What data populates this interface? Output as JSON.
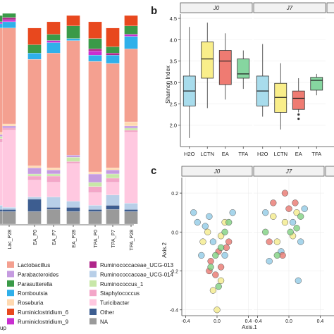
{
  "panel_labels": {
    "b": "b",
    "c": "c"
  },
  "panel_a": {
    "x_labels": [
      "Lac_P28",
      "EA_P0",
      "EA_P7",
      "EA_P28",
      "TPA_P0",
      "TPA_P7",
      "TPA_P28"
    ],
    "legend_cut_label": "up",
    "legend": [
      {
        "label": "Lactobacillus",
        "color": "#f4a090"
      },
      {
        "label": "Parabacteroides",
        "color": "#c59be0"
      },
      {
        "label": "Parasutterella",
        "color": "#3a9a48"
      },
      {
        "label": "Romboutsia",
        "color": "#2fb0ea"
      },
      {
        "label": "Roseburia",
        "color": "#ffd9b0"
      },
      {
        "label": "Ruminiclostridium_6",
        "color": "#e8481e"
      },
      {
        "label": "Ruminiclostridium_9",
        "color": "#c92fd0"
      },
      {
        "label": "Ruminococcaceae_UCG-013",
        "color": "#b0268a"
      },
      {
        "label": "Ruminococcaceae_UCG-014",
        "color": "#b8cfe8"
      },
      {
        "label": "Ruminococcus_1",
        "color": "#c8e7a8"
      },
      {
        "label": "Staphylococcus",
        "color": "#f3a6c8"
      },
      {
        "label": "Turicibacter",
        "color": "#ffc8e0"
      },
      {
        "label": "Other",
        "color": "#3d5d90"
      },
      {
        "label": "NA",
        "color": "#9a9a9a"
      }
    ]
  },
  "chart_data": [
    {
      "type": "bar",
      "stacked": true,
      "categories": [
        "Lac_P28",
        "EA_P0",
        "EA_P7",
        "EA_P28",
        "TPA_P0",
        "TPA_P7",
        "TPA_P28"
      ],
      "ylim": [
        0,
        1
      ],
      "series": [
        {
          "name": "NA",
          "values": [
            0.06,
            0.06,
            0.07,
            0.06,
            0.06,
            0.07,
            0.06
          ]
        },
        {
          "name": "Other",
          "values": [
            0.01,
            0.06,
            0.01,
            0.02,
            0.01,
            0.02,
            0.01
          ]
        },
        {
          "name": "Ruminococcaceae_UCG-014",
          "values": [
            0.01,
            0.01,
            0.05,
            0.03,
            0.02,
            0.05,
            0.03
          ]
        },
        {
          "name": "Turicibacter",
          "values": [
            0.37,
            0.08,
            0.07,
            0.18,
            0.06,
            0.06,
            0.34
          ]
        },
        {
          "name": "Staphylococcus",
          "values": [
            0.01,
            0.02,
            0.03,
            0.01,
            0.03,
            0.02,
            0.01
          ]
        },
        {
          "name": "Ruminococcus_1",
          "values": [
            0.0,
            0.01,
            0.01,
            0.02,
            0.02,
            0.02,
            0.01
          ]
        },
        {
          "name": "Parabacteroides",
          "values": [
            0.01,
            0.03,
            0.02,
            0.01,
            0.04,
            0.02,
            0.01
          ]
        },
        {
          "name": "Roseburia",
          "values": [
            0.01,
            0.01,
            0.01,
            0.0,
            0.01,
            0.01,
            0.02
          ]
        },
        {
          "name": "Lactobacillus",
          "values": [
            0.46,
            0.51,
            0.55,
            0.55,
            0.53,
            0.5,
            0.35
          ]
        },
        {
          "name": "Romboutsia",
          "values": [
            0.03,
            0.03,
            0.05,
            0.01,
            0.03,
            0.04,
            0.06
          ]
        },
        {
          "name": "Ruminiclostridium_9",
          "values": [
            0.01,
            0.0,
            0.01,
            0.0,
            0.02,
            0.0,
            0.01
          ]
        },
        {
          "name": "Ruminococcaceae_UCG-013",
          "values": [
            0.01,
            0.0,
            0.0,
            0.0,
            0.01,
            0.01,
            0.0
          ]
        },
        {
          "name": "Parasutterella",
          "values": [
            0.02,
            0.04,
            0.03,
            0.06,
            0.05,
            0.03,
            0.04
          ]
        },
        {
          "name": "Ruminiclostridium_6",
          "values": [
            0.0,
            0.08,
            0.06,
            0.05,
            0.08,
            0.09,
            0.05
          ]
        }
      ]
    },
    {
      "type": "box",
      "ylabel": "Shannon Index",
      "ylim": [
        1.5,
        4.6
      ],
      "yticks": [
        2.0,
        2.5,
        3.0,
        3.5,
        4.0,
        4.5
      ],
      "facets": [
        "J0",
        "J7"
      ],
      "groups": [
        {
          "facet": "J0",
          "label": "H2O",
          "color": "#a8dcec",
          "min": 1.7,
          "q1": 2.45,
          "median": 2.8,
          "q3": 3.15,
          "max": 4.3
        },
        {
          "facet": "J0",
          "label": "LCTN",
          "color": "#f9ee8a",
          "min": 2.4,
          "q1": 3.1,
          "median": 3.55,
          "q3": 3.95,
          "max": 4.4
        },
        {
          "facet": "J0",
          "label": "EA",
          "color": "#ef7b72",
          "min": 2.6,
          "q1": 2.95,
          "median": 3.5,
          "q3": 3.75,
          "max": 4.15
        },
        {
          "facet": "J0",
          "label": "TFA",
          "color": "#86d6a0",
          "min": 2.85,
          "q1": 3.1,
          "median": 3.2,
          "q3": 3.55,
          "max": 3.75
        },
        {
          "facet": "J7",
          "label": "H2O",
          "color": "#a8dcec",
          "min": 2.2,
          "q1": 2.45,
          "median": 2.8,
          "q3": 3.15,
          "max": 3.9
        },
        {
          "facet": "J7",
          "label": "LCTN",
          "color": "#f9ee8a",
          "min": 1.9,
          "q1": 2.3,
          "median": 2.65,
          "q3": 2.98,
          "max": 3.45
        },
        {
          "facet": "J7",
          "label": "EA",
          "color": "#ef7b72",
          "min": 2.3,
          "q1": 2.37,
          "median": 2.63,
          "q3": 2.8,
          "max": 3.1,
          "outliers": [
            2.15,
            2.25
          ]
        },
        {
          "facet": "J7",
          "label": "TFA",
          "color": "#86d6a0",
          "min": 2.7,
          "q1": 2.82,
          "median": 3.05,
          "q3": 3.12,
          "max": 3.2
        }
      ]
    },
    {
      "type": "scatter",
      "xlabel": "Axis.1",
      "ylabel": "Axis.2",
      "facets": [
        "J0",
        "J7"
      ],
      "xlim": [
        -0.45,
        0.45
      ],
      "ylim": [
        -0.43,
        0.28
      ],
      "xticks": [
        -0.4,
        0.0,
        0.4
      ],
      "xtick_labels": [
        "-0.4",
        "0.0",
        "0.4"
      ],
      "yticks": [
        -0.4,
        -0.2,
        0.0,
        0.2
      ],
      "ytick_labels": [
        "-0.4",
        "-0.2",
        "0.0",
        "0.2"
      ],
      "points": [
        {
          "facet": "J0",
          "x": -0.3,
          "y": 0.1,
          "color": "#8ec9e6"
        },
        {
          "facet": "J0",
          "x": -0.25,
          "y": 0.05,
          "color": "#8ec9e6"
        },
        {
          "facet": "J0",
          "x": -0.15,
          "y": 0.03,
          "color": "#8ec9e6"
        },
        {
          "facet": "J0",
          "x": -0.1,
          "y": 0.08,
          "color": "#8ec9e6"
        },
        {
          "facet": "J0",
          "x": -0.05,
          "y": -0.05,
          "color": "#8ec9e6"
        },
        {
          "facet": "J0",
          "x": 0.2,
          "y": 0.1,
          "color": "#8ec9e6"
        },
        {
          "facet": "J0",
          "x": 0.1,
          "y": -0.12,
          "color": "#8ec9e6"
        },
        {
          "facet": "J0",
          "x": -0.2,
          "y": -0.12,
          "color": "#8ec9e6"
        },
        {
          "facet": "J0",
          "x": -0.12,
          "y": 0.0,
          "color": "#f4ea88"
        },
        {
          "facet": "J0",
          "x": 0.05,
          "y": -0.02,
          "color": "#f4ea88"
        },
        {
          "facet": "J0",
          "x": -0.05,
          "y": -0.3,
          "color": "#f4ea88"
        },
        {
          "facet": "J0",
          "x": 0.0,
          "y": -0.4,
          "color": "#f4ea88"
        },
        {
          "facet": "J0",
          "x": 0.05,
          "y": -0.25,
          "color": "#f4ea88"
        },
        {
          "facet": "J0",
          "x": 0.1,
          "y": 0.05,
          "color": "#f4ea88"
        },
        {
          "facet": "J0",
          "x": -0.18,
          "y": -0.05,
          "color": "#f4ea88"
        },
        {
          "facet": "J0",
          "x": 0.12,
          "y": -0.08,
          "color": "#e8736c"
        },
        {
          "facet": "J0",
          "x": 0.02,
          "y": -0.1,
          "color": "#e8736c"
        },
        {
          "facet": "J0",
          "x": -0.08,
          "y": -0.15,
          "color": "#e8736c"
        },
        {
          "facet": "J0",
          "x": 0.05,
          "y": -0.18,
          "color": "#e8736c"
        },
        {
          "facet": "J0",
          "x": -0.02,
          "y": -0.22,
          "color": "#e8736c"
        },
        {
          "facet": "J0",
          "x": 0.15,
          "y": -0.05,
          "color": "#e8736c"
        },
        {
          "facet": "J0",
          "x": -0.1,
          "y": -0.2,
          "color": "#e8736c"
        },
        {
          "facet": "J0",
          "x": 0.15,
          "y": 0.05,
          "color": "#7ccf7e"
        },
        {
          "facet": "J0",
          "x": 0.1,
          "y": 0.0,
          "color": "#7ccf7e"
        },
        {
          "facet": "J0",
          "x": 0.05,
          "y": -0.08,
          "color": "#7ccf7e"
        },
        {
          "facet": "J0",
          "x": -0.02,
          "y": -0.12,
          "color": "#7ccf7e"
        },
        {
          "facet": "J0",
          "x": -0.08,
          "y": -0.18,
          "color": "#7ccf7e"
        },
        {
          "facet": "J0",
          "x": 0.02,
          "y": -0.28,
          "color": "#7ccf7e"
        },
        {
          "facet": "J7",
          "x": -0.3,
          "y": 0.1,
          "color": "#8ec9e6"
        },
        {
          "facet": "J7",
          "x": -0.25,
          "y": -0.15,
          "color": "#8ec9e6"
        },
        {
          "facet": "J7",
          "x": 0.2,
          "y": 0.12,
          "color": "#8ec9e6"
        },
        {
          "facet": "J7",
          "x": 0.15,
          "y": -0.05,
          "color": "#8ec9e6"
        },
        {
          "facet": "J7",
          "x": 0.12,
          "y": -0.25,
          "color": "#8ec9e6"
        },
        {
          "facet": "J7",
          "x": 0.05,
          "y": 0.05,
          "color": "#8ec9e6"
        },
        {
          "facet": "J7",
          "x": -0.1,
          "y": -0.1,
          "color": "#8ec9e6"
        },
        {
          "facet": "J7",
          "x": -0.2,
          "y": 0.08,
          "color": "#f4ea88"
        },
        {
          "facet": "J7",
          "x": -0.05,
          "y": 0.05,
          "color": "#f4ea88"
        },
        {
          "facet": "J7",
          "x": 0.05,
          "y": -0.02,
          "color": "#f4ea88"
        },
        {
          "facet": "J7",
          "x": 0.1,
          "y": 0.1,
          "color": "#f4ea88"
        },
        {
          "facet": "J7",
          "x": -0.15,
          "y": -0.05,
          "color": "#f4ea88"
        },
        {
          "facet": "J7",
          "x": -0.05,
          "y": 0.2,
          "color": "#e8736c"
        },
        {
          "facet": "J7",
          "x": -0.2,
          "y": 0.15,
          "color": "#e8736c"
        },
        {
          "facet": "J7",
          "x": 0.0,
          "y": 0.12,
          "color": "#e8736c"
        },
        {
          "facet": "J7",
          "x": -0.25,
          "y": -0.05,
          "color": "#e8736c"
        },
        {
          "facet": "J7",
          "x": -0.08,
          "y": -0.12,
          "color": "#e8736c"
        },
        {
          "facet": "J7",
          "x": 0.08,
          "y": 0.15,
          "color": "#e8736c"
        },
        {
          "facet": "J7",
          "x": 0.1,
          "y": 0.02,
          "color": "#7ccf7e"
        },
        {
          "facet": "J7",
          "x": 0.15,
          "y": 0.08,
          "color": "#7ccf7e"
        },
        {
          "facet": "J7",
          "x": -0.15,
          "y": -0.12,
          "color": "#7ccf7e"
        },
        {
          "facet": "J7",
          "x": 0.02,
          "y": 0.0,
          "color": "#7ccf7e"
        },
        {
          "facet": "J7",
          "x": -0.3,
          "y": 0.0,
          "color": "#7ccf7e"
        }
      ]
    }
  ]
}
